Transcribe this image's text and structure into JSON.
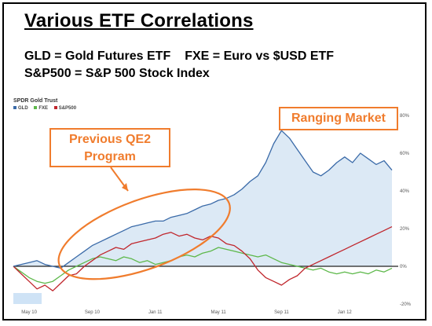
{
  "title": "Various ETF Correlations",
  "definitions": {
    "gld": "GLD = Gold Futures ETF",
    "fxe": "FXE = Euro vs $USD ETF",
    "sp500": "S&P500 = S&P 500 Stock Index"
  },
  "annotations": {
    "qe2": "Previous QE2 Program",
    "ranging": "Ranging Market"
  },
  "colors": {
    "gld": "#3a6aa8",
    "fxe": "#5db84a",
    "sp500": "#c0262c",
    "accent": "#f07c2d",
    "area": "#dce9f5"
  },
  "chart_data": {
    "type": "line",
    "title": "SPDR Gold Trust",
    "ylim": [
      -20,
      80
    ],
    "y_ticks": [
      "80%",
      "60%",
      "40%",
      "20%",
      "0%",
      "-20%"
    ],
    "x_ticks": [
      "May 10",
      "Sep 10",
      "Jan 11",
      "May 11",
      "Sep 11",
      "Jan 12"
    ],
    "series": [
      {
        "name": "GLD",
        "x": [
          0,
          0.5,
          1,
          1.5,
          2,
          2.5,
          3,
          3.5,
          4,
          4.5,
          5,
          5.5,
          6,
          6.5,
          7,
          7.5,
          8,
          8.5,
          9,
          9.5,
          10,
          10.5,
          11,
          11.5,
          12,
          12.5,
          13,
          13.5,
          14,
          14.5,
          15,
          15.5,
          16,
          16.5,
          17,
          17.5,
          18,
          18.5,
          19,
          19.5,
          20,
          20.5,
          21,
          21.5,
          22,
          22.5,
          23,
          23.5,
          24
        ],
        "values": [
          0,
          1,
          2,
          3,
          1,
          0,
          -1,
          2,
          5,
          8,
          11,
          13,
          15,
          17,
          19,
          21,
          22,
          23,
          24,
          24,
          26,
          27,
          28,
          30,
          32,
          33,
          35,
          36,
          38,
          41,
          45,
          48,
          55,
          65,
          72,
          68,
          62,
          56,
          50,
          48,
          51,
          55,
          58,
          55,
          60,
          57,
          54,
          56,
          51
        ]
      },
      {
        "name": "FXE",
        "x": [
          0,
          0.5,
          1,
          1.5,
          2,
          2.5,
          3,
          3.5,
          4,
          4.5,
          5,
          5.5,
          6,
          6.5,
          7,
          7.5,
          8,
          8.5,
          9,
          9.5,
          10,
          10.5,
          11,
          11.5,
          12,
          12.5,
          13,
          13.5,
          14,
          14.5,
          15,
          15.5,
          16,
          16.5,
          17,
          17.5,
          18,
          18.5,
          19,
          19.5,
          20,
          20.5,
          21,
          21.5,
          22,
          22.5,
          23,
          23.5,
          24
        ],
        "values": [
          0,
          -3,
          -6,
          -8,
          -9,
          -8,
          -5,
          -2,
          0,
          2,
          4,
          5,
          4,
          3,
          5,
          4,
          2,
          3,
          1,
          2,
          3,
          5,
          6,
          5,
          7,
          8,
          10,
          9,
          8,
          7,
          6,
          5,
          6,
          4,
          2,
          1,
          0,
          -1,
          -2,
          -1,
          -3,
          -4,
          -3,
          -4,
          -3,
          -4,
          -2,
          -3,
          -1
        ]
      },
      {
        "name": "S&P500",
        "x": [
          0,
          0.5,
          1,
          1.5,
          2,
          2.5,
          3,
          3.5,
          4,
          4.5,
          5,
          5.5,
          6,
          6.5,
          7,
          7.5,
          8,
          8.5,
          9,
          9.5,
          10,
          10.5,
          11,
          11.5,
          12,
          12.5,
          13,
          13.5,
          14,
          14.5,
          15,
          15.5,
          16,
          16.5,
          17,
          17.5,
          18,
          18.5,
          19,
          19.5,
          20,
          20.5,
          21,
          21.5,
          22,
          22.5,
          23,
          23.5,
          24
        ],
        "values": [
          0,
          -4,
          -8,
          -12,
          -10,
          -13,
          -9,
          -5,
          -4,
          0,
          3,
          6,
          8,
          10,
          9,
          12,
          13,
          14,
          15,
          17,
          18,
          16,
          17,
          15,
          14,
          16,
          15,
          12,
          11,
          8,
          4,
          -2,
          -6,
          -8,
          -10,
          -7,
          -5,
          -1,
          1,
          3,
          5,
          7,
          9,
          11,
          13,
          15,
          17,
          19,
          21
        ]
      }
    ]
  }
}
